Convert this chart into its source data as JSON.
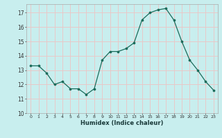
{
  "x": [
    0,
    1,
    2,
    3,
    4,
    5,
    6,
    7,
    8,
    9,
    10,
    11,
    12,
    13,
    14,
    15,
    16,
    17,
    18,
    19,
    20,
    21,
    22,
    23
  ],
  "y": [
    13.3,
    13.3,
    12.8,
    12.0,
    12.2,
    11.7,
    11.7,
    11.3,
    11.7,
    13.7,
    14.3,
    14.3,
    14.5,
    14.9,
    16.5,
    17.0,
    17.2,
    17.3,
    16.5,
    15.0,
    13.7,
    13.0,
    12.2,
    11.6
  ],
  "xlabel": "Humidex (Indice chaleur)",
  "line_color": "#1a6b5a",
  "marker_color": "#1a6b5a",
  "bg_color": "#c8eeee",
  "grid_color": "#e8c8c8",
  "xlim": [
    -0.5,
    23.5
  ],
  "ylim": [
    10,
    17.6
  ],
  "yticks": [
    10,
    11,
    12,
    13,
    14,
    15,
    16,
    17
  ],
  "xticks": [
    0,
    1,
    2,
    3,
    4,
    5,
    6,
    7,
    8,
    9,
    10,
    11,
    12,
    13,
    14,
    15,
    16,
    17,
    18,
    19,
    20,
    21,
    22,
    23
  ]
}
